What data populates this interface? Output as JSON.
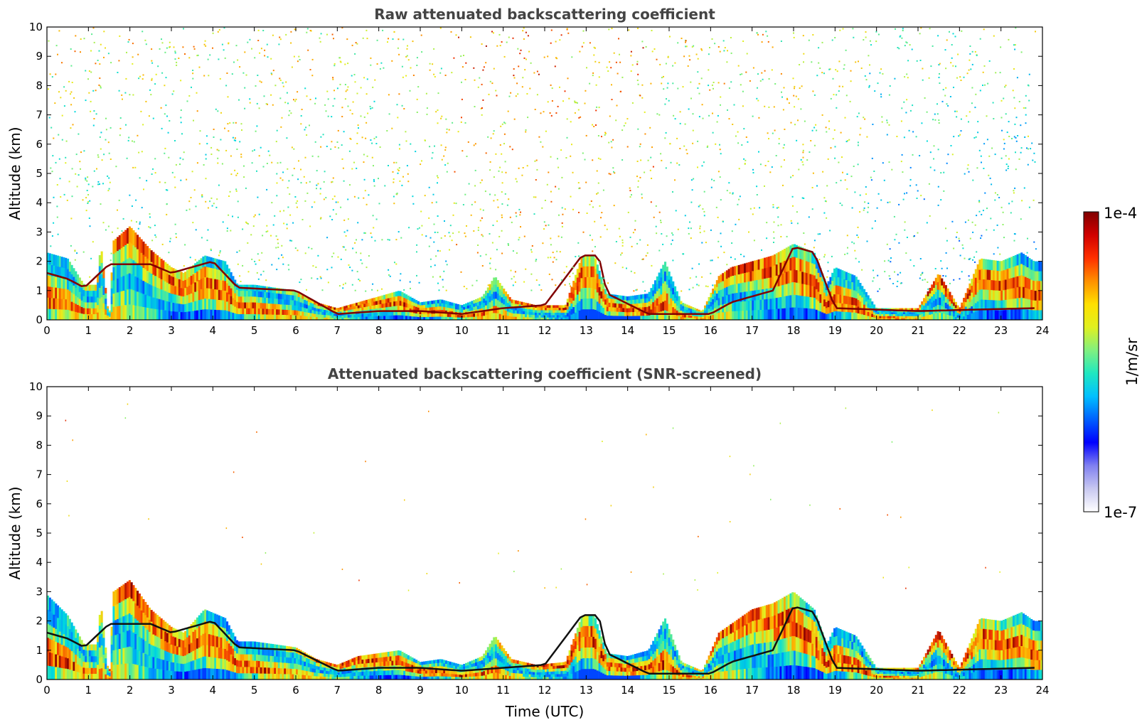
{
  "chart_data": [
    {
      "type": "heatmap",
      "title": "Raw attenuated backscattering coefficient",
      "xlabel": "",
      "ylabel": "Altitude (km)",
      "xlim": [
        0,
        24
      ],
      "ylim": [
        0,
        10
      ],
      "x_ticks": [
        "0",
        "1",
        "2",
        "3",
        "4",
        "5",
        "6",
        "7",
        "8",
        "9",
        "10",
        "11",
        "12",
        "13",
        "14",
        "15",
        "16",
        "17",
        "18",
        "19",
        "20",
        "21",
        "22",
        "23",
        "24"
      ],
      "y_ticks": [
        "0",
        "1",
        "2",
        "3",
        "4",
        "5",
        "6",
        "7",
        "8",
        "9",
        "10"
      ],
      "grid": false,
      "layer_top_km": [
        [
          0.0,
          2.3
        ],
        [
          0.5,
          2.1
        ],
        [
          0.9,
          1.2
        ],
        [
          1.2,
          1.2
        ],
        [
          1.3,
          2.6
        ],
        [
          1.5,
          0
        ],
        [
          1.6,
          2.7
        ],
        [
          2.0,
          3.2
        ],
        [
          2.5,
          2.4
        ],
        [
          3.0,
          1.8
        ],
        [
          3.3,
          1.6
        ],
        [
          3.8,
          2.2
        ],
        [
          4.3,
          2.0
        ],
        [
          4.6,
          1.2
        ],
        [
          5.0,
          1.2
        ],
        [
          5.5,
          1.1
        ],
        [
          6.0,
          1.0
        ],
        [
          6.5,
          0.6
        ],
        [
          7.0,
          0.4
        ],
        [
          7.5,
          0.6
        ],
        [
          8.0,
          0.8
        ],
        [
          8.5,
          1.0
        ],
        [
          9.0,
          0.6
        ],
        [
          9.5,
          0.7
        ],
        [
          10.0,
          0.5
        ],
        [
          10.5,
          0.8
        ],
        [
          10.8,
          1.5
        ],
        [
          11.2,
          0.7
        ],
        [
          11.8,
          0.5
        ],
        [
          12.5,
          0.5
        ],
        [
          12.9,
          2.2
        ],
        [
          13.2,
          2.2
        ],
        [
          13.5,
          0.9
        ],
        [
          14.0,
          0.8
        ],
        [
          14.5,
          0.9
        ],
        [
          14.9,
          2.0
        ],
        [
          15.3,
          0.6
        ],
        [
          15.8,
          0.3
        ],
        [
          16.2,
          1.5
        ],
        [
          16.5,
          1.8
        ],
        [
          17.0,
          2.0
        ],
        [
          17.5,
          2.2
        ],
        [
          18.0,
          2.6
        ],
        [
          18.5,
          2.3
        ],
        [
          18.8,
          1.2
        ],
        [
          19.0,
          1.8
        ],
        [
          19.5,
          1.5
        ],
        [
          20.0,
          0.4
        ],
        [
          21.0,
          0.4
        ],
        [
          21.5,
          1.6
        ],
        [
          22.0,
          0.4
        ],
        [
          22.5,
          2.1
        ],
        [
          23.0,
          2.0
        ],
        [
          23.5,
          2.3
        ],
        [
          23.8,
          2.0
        ]
      ],
      "aerosol_base_km": [
        [
          0.0,
          1.6
        ],
        [
          0.5,
          1.4
        ],
        [
          0.9,
          1.1
        ],
        [
          1.5,
          1.9
        ],
        [
          2.5,
          1.9
        ],
        [
          3.0,
          1.6
        ],
        [
          4.0,
          2.0
        ],
        [
          4.6,
          1.1
        ],
        [
          6.0,
          1.0
        ],
        [
          7.0,
          0.2
        ],
        [
          8.0,
          0.3
        ],
        [
          9.0,
          0.3
        ],
        [
          10.0,
          0.2
        ],
        [
          11.0,
          0.4
        ],
        [
          12.0,
          0.5
        ],
        [
          12.9,
          2.2
        ],
        [
          13.3,
          2.2
        ],
        [
          13.5,
          0.9
        ],
        [
          14.5,
          0.2
        ],
        [
          16.0,
          0.2
        ],
        [
          16.5,
          0.6
        ],
        [
          17.5,
          1.0
        ],
        [
          18.0,
          2.5
        ],
        [
          18.5,
          2.3
        ],
        [
          19.0,
          0.4
        ],
        [
          21.0,
          0.3
        ],
        [
          23.8,
          0.4
        ]
      ]
    },
    {
      "type": "heatmap",
      "title": "Attenuated backscattering coefficient (SNR-screened)",
      "xlabel": "Time (UTC)",
      "ylabel": "Altitude (km)",
      "xlim": [
        0,
        24
      ],
      "ylim": [
        0,
        10
      ],
      "x_ticks": [
        "0",
        "1",
        "2",
        "3",
        "4",
        "5",
        "6",
        "7",
        "8",
        "9",
        "10",
        "11",
        "12",
        "13",
        "14",
        "15",
        "16",
        "17",
        "18",
        "19",
        "20",
        "21",
        "22",
        "23",
        "24"
      ],
      "y_ticks": [
        "0",
        "1",
        "2",
        "3",
        "4",
        "5",
        "6",
        "7",
        "8",
        "9",
        "10"
      ],
      "grid": false,
      "layer_top_km": [
        [
          0.0,
          2.9
        ],
        [
          0.5,
          2.2
        ],
        [
          0.9,
          1.2
        ],
        [
          1.2,
          1.2
        ],
        [
          1.3,
          2.6
        ],
        [
          1.5,
          0
        ],
        [
          1.6,
          3.0
        ],
        [
          2.0,
          3.4
        ],
        [
          2.5,
          2.4
        ],
        [
          3.0,
          1.8
        ],
        [
          3.3,
          1.6
        ],
        [
          3.8,
          2.4
        ],
        [
          4.3,
          2.1
        ],
        [
          4.6,
          1.3
        ],
        [
          5.0,
          1.3
        ],
        [
          5.5,
          1.2
        ],
        [
          6.0,
          1.1
        ],
        [
          6.5,
          0.7
        ],
        [
          7.0,
          0.5
        ],
        [
          7.5,
          0.8
        ],
        [
          8.0,
          0.9
        ],
        [
          8.5,
          1.0
        ],
        [
          9.0,
          0.6
        ],
        [
          9.5,
          0.7
        ],
        [
          10.0,
          0.5
        ],
        [
          10.5,
          0.8
        ],
        [
          10.8,
          1.5
        ],
        [
          11.2,
          0.7
        ],
        [
          11.8,
          0.5
        ],
        [
          12.5,
          0.6
        ],
        [
          12.9,
          2.2
        ],
        [
          13.2,
          2.2
        ],
        [
          13.5,
          0.9
        ],
        [
          14.0,
          0.8
        ],
        [
          14.5,
          1.0
        ],
        [
          14.9,
          2.1
        ],
        [
          15.3,
          0.6
        ],
        [
          15.8,
          0.3
        ],
        [
          16.2,
          1.6
        ],
        [
          16.5,
          1.9
        ],
        [
          17.0,
          2.4
        ],
        [
          17.5,
          2.6
        ],
        [
          18.0,
          3.0
        ],
        [
          18.5,
          2.4
        ],
        [
          18.8,
          1.2
        ],
        [
          19.0,
          1.8
        ],
        [
          19.5,
          1.5
        ],
        [
          20.0,
          0.4
        ],
        [
          21.0,
          0.4
        ],
        [
          21.5,
          1.7
        ],
        [
          22.0,
          0.4
        ],
        [
          22.5,
          2.1
        ],
        [
          23.0,
          2.0
        ],
        [
          23.5,
          2.3
        ],
        [
          23.8,
          2.0
        ]
      ],
      "aerosol_base_km": [
        [
          0.0,
          1.6
        ],
        [
          0.5,
          1.4
        ],
        [
          0.9,
          1.1
        ],
        [
          1.5,
          1.9
        ],
        [
          2.5,
          1.9
        ],
        [
          3.0,
          1.6
        ],
        [
          4.0,
          2.0
        ],
        [
          4.6,
          1.1
        ],
        [
          6.0,
          1.0
        ],
        [
          7.0,
          0.3
        ],
        [
          8.0,
          0.4
        ],
        [
          9.0,
          0.4
        ],
        [
          10.0,
          0.3
        ],
        [
          11.0,
          0.4
        ],
        [
          12.0,
          0.5
        ],
        [
          12.9,
          2.2
        ],
        [
          13.3,
          2.2
        ],
        [
          13.5,
          0.9
        ],
        [
          14.5,
          0.2
        ],
        [
          16.0,
          0.2
        ],
        [
          16.5,
          0.6
        ],
        [
          17.5,
          1.0
        ],
        [
          18.0,
          2.5
        ],
        [
          18.5,
          2.3
        ],
        [
          19.0,
          0.4
        ],
        [
          21.0,
          0.3
        ],
        [
          23.8,
          0.4
        ]
      ]
    }
  ],
  "colorbar": {
    "max_label": "1e-4",
    "min_label": "1e-7",
    "unit_label": "1/m/sr",
    "colors": [
      "#ffffff",
      "#c8c8f0",
      "#8080f0",
      "#0000ff",
      "#0060ff",
      "#00c0ff",
      "#20e8c0",
      "#80f080",
      "#e0f020",
      "#ffe000",
      "#ff9000",
      "#ff3000",
      "#d00000",
      "#800000"
    ]
  }
}
